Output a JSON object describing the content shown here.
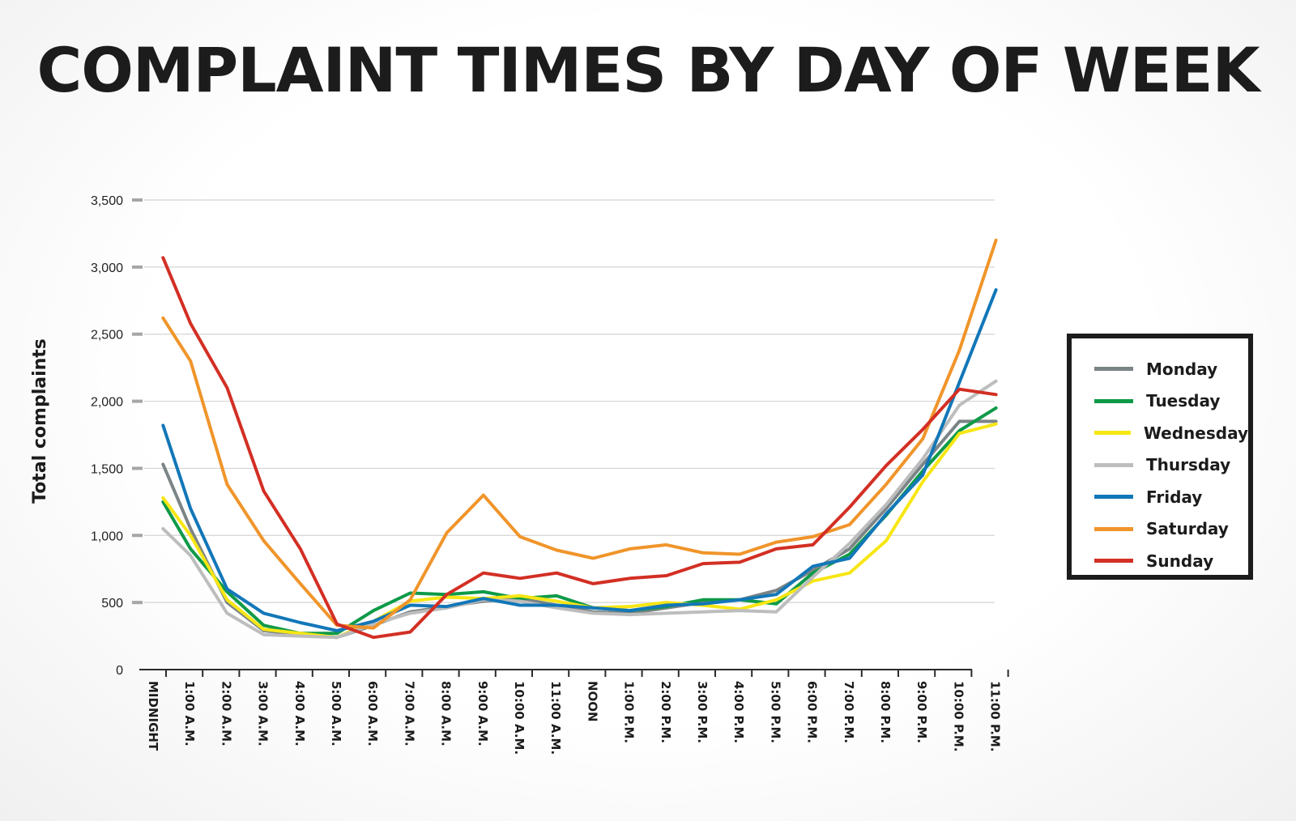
{
  "chart_data": {
    "type": "line",
    "title": "COMPLAINT TIMES BY DAY OF WEEK",
    "ylabel": "Total complaints",
    "xlabel": "",
    "ylim": [
      0,
      3500
    ],
    "yticks": [
      0,
      500,
      1000,
      1500,
      2000,
      2500,
      3000,
      3500
    ],
    "ytick_labels": [
      "0",
      "500",
      "1,000",
      "1,500",
      "2,000",
      "2,500",
      "3,000",
      "3,500"
    ],
    "categories": [
      "MIDNIGHT",
      "1:00 A.M.",
      "2:00 A.M.",
      "3:00 A.M.",
      "4:00 A.M.",
      "5:00 A.M.",
      "6:00 A.M.",
      "7:00 A.M.",
      "8:00 A.M.",
      "9:00 A.M.",
      "10:00 A.M.",
      "11:00 A.M.",
      "NOON",
      "1:00 P.M.",
      "2:00 P.M.",
      "3:00 P.M.",
      "4:00 P.M.",
      "5:00 P.M.",
      "6:00 P.M.",
      "7:00 P.M.",
      "8:00 P.M.",
      "9:00 P.M.",
      "10:00 P.M.",
      "11:00 P.M."
    ],
    "grid": true,
    "legend_position": "right",
    "series": [
      {
        "name": "Monday",
        "color": "#7b8486",
        "x": [
          0.25,
          1,
          2,
          3,
          4,
          5,
          6,
          7,
          8,
          9,
          10,
          11,
          12,
          13,
          14,
          15,
          16,
          17,
          18,
          19,
          20,
          21,
          22,
          23
        ],
        "values": [
          1530,
          1050,
          500,
          290,
          260,
          240,
          330,
          430,
          470,
          510,
          530,
          480,
          430,
          420,
          460,
          500,
          520,
          590,
          740,
          900,
          1200,
          1530,
          1850,
          1850
        ]
      },
      {
        "name": "Tuesday",
        "color": "#0e9a48",
        "x": [
          0.25,
          1,
          2,
          3,
          4,
          5,
          6,
          7,
          8,
          9,
          10,
          11,
          12,
          13,
          14,
          15,
          16,
          17,
          18,
          19,
          20,
          21,
          22,
          23
        ],
        "values": [
          1250,
          900,
          580,
          330,
          270,
          270,
          440,
          570,
          560,
          580,
          530,
          550,
          460,
          440,
          470,
          520,
          520,
          490,
          720,
          860,
          1150,
          1480,
          1780,
          1950
        ]
      },
      {
        "name": "Wednesday",
        "color": "#f7e614",
        "x": [
          0.25,
          1,
          2,
          3,
          4,
          5,
          6,
          7,
          8,
          9,
          10,
          11,
          12,
          13,
          14,
          15,
          16,
          17,
          18,
          19,
          20,
          21,
          22,
          23
        ],
        "values": [
          1280,
          1000,
          520,
          300,
          270,
          240,
          360,
          510,
          540,
          530,
          550,
          510,
          460,
          470,
          500,
          480,
          450,
          520,
          660,
          720,
          960,
          1400,
          1760,
          1830
        ]
      },
      {
        "name": "Thursday",
        "color": "#bdbdbd",
        "x": [
          0.25,
          1,
          2,
          3,
          4,
          5,
          6,
          7,
          8,
          9,
          10,
          11,
          12,
          13,
          14,
          15,
          16,
          17,
          18,
          19,
          20,
          21,
          22,
          23
        ],
        "values": [
          1050,
          850,
          420,
          260,
          250,
          240,
          340,
          420,
          460,
          520,
          510,
          460,
          420,
          410,
          420,
          430,
          440,
          430,
          690,
          940,
          1230,
          1570,
          1970,
          2150
        ]
      },
      {
        "name": "Friday",
        "color": "#1277b8",
        "x": [
          0.25,
          1,
          2,
          3,
          4,
          5,
          6,
          7,
          8,
          9,
          10,
          11,
          12,
          13,
          14,
          15,
          16,
          17,
          18,
          19,
          20,
          21,
          22,
          23
        ],
        "values": [
          1820,
          1200,
          600,
          420,
          350,
          290,
          360,
          480,
          470,
          530,
          480,
          480,
          460,
          440,
          480,
          490,
          520,
          560,
          770,
          830,
          1160,
          1450,
          2140,
          2830
        ]
      },
      {
        "name": "Saturday",
        "color": "#f0952b",
        "x": [
          0.25,
          1,
          2,
          3,
          4,
          5,
          6,
          7,
          8,
          9,
          10,
          11,
          12,
          13,
          14,
          15,
          16,
          17,
          18,
          19,
          20,
          21,
          22,
          23
        ],
        "values": [
          2620,
          2300,
          1380,
          960,
          640,
          330,
          310,
          520,
          1020,
          1300,
          990,
          890,
          830,
          900,
          930,
          870,
          860,
          950,
          990,
          1080,
          1380,
          1720,
          2380,
          3200
        ]
      },
      {
        "name": "Sunday",
        "color": "#d32f24",
        "x": [
          0.25,
          1,
          2,
          3,
          4,
          5,
          6,
          7,
          8,
          9,
          10,
          11,
          12,
          13,
          14,
          15,
          16,
          17,
          18,
          19,
          20,
          21,
          22,
          23
        ],
        "values": [
          3070,
          2580,
          2100,
          1330,
          900,
          340,
          240,
          280,
          560,
          720,
          680,
          720,
          640,
          680,
          700,
          790,
          800,
          900,
          930,
          1210,
          1520,
          1790,
          2090,
          2050
        ]
      }
    ]
  }
}
